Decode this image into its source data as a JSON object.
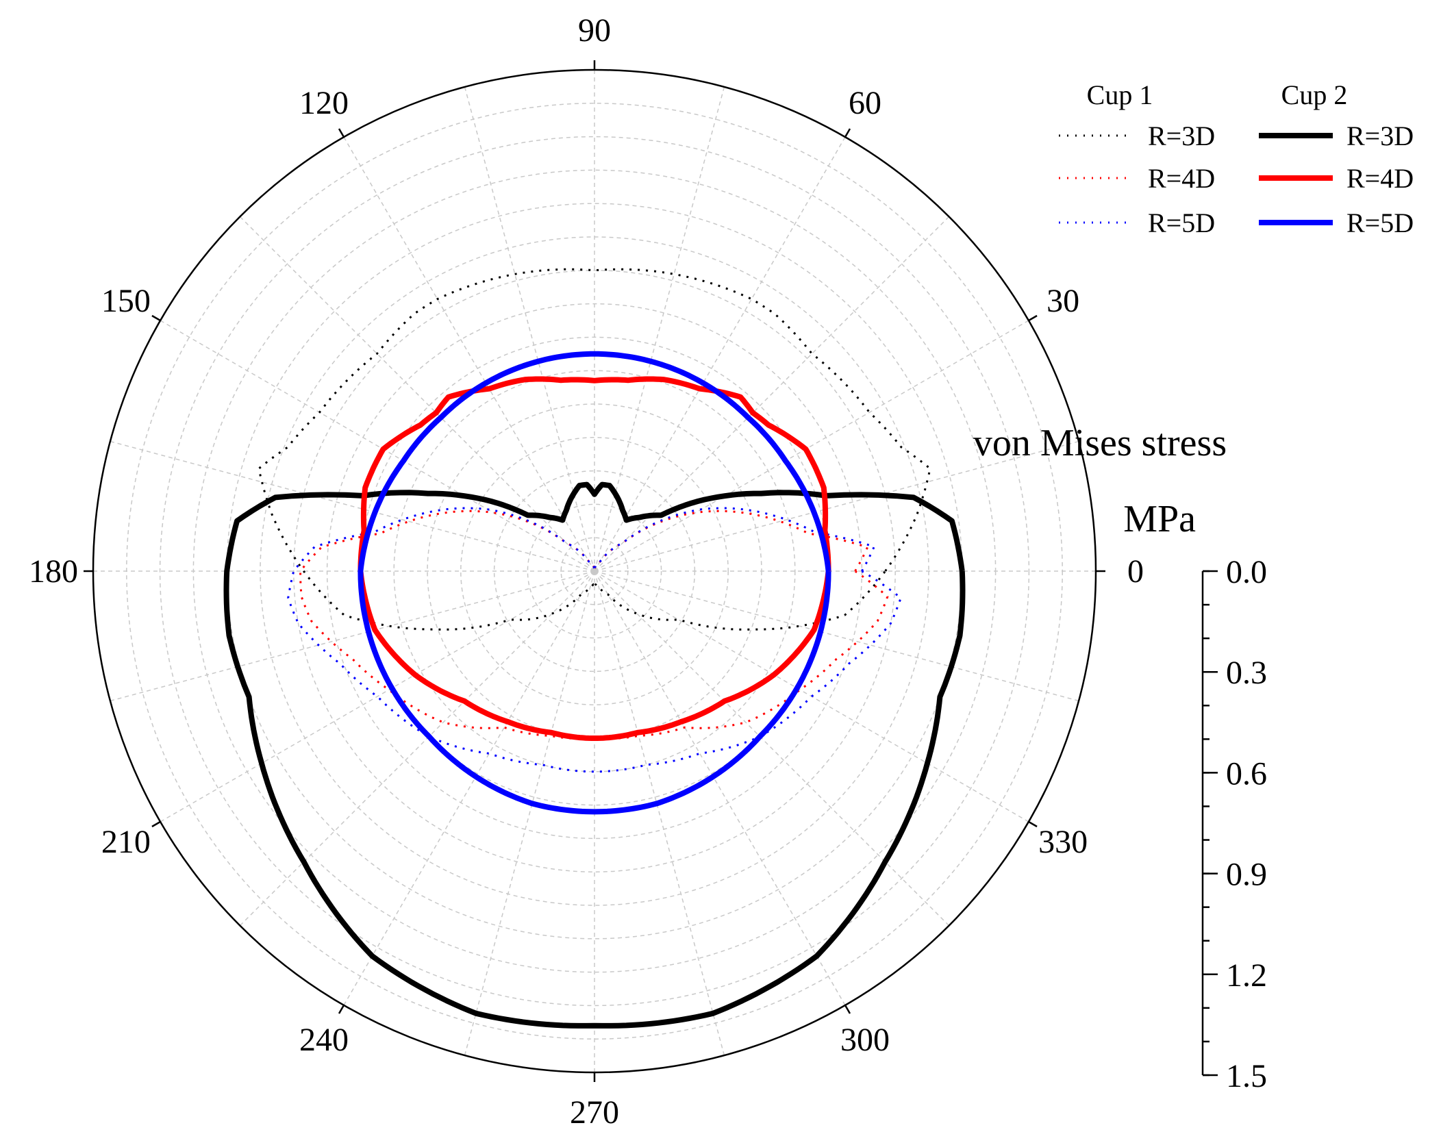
{
  "chart_data": {
    "type": "polar-line",
    "radial_axis": {
      "title": "von Mises stress",
      "unit": "MPa",
      "range": [
        0.0,
        1.5
      ],
      "ticks": [
        "0.0",
        "0.3",
        "0.6",
        "0.9",
        "1.2",
        "1.5"
      ],
      "tick_values": [
        0.0,
        0.3,
        0.6,
        0.9,
        1.2,
        1.5
      ],
      "minor_step": 0.1,
      "grid_rings": 15,
      "grid": true
    },
    "angular_axis": {
      "unit": "deg",
      "ticks": [
        "0",
        "30",
        "60",
        "90",
        "120",
        "150",
        "180",
        "210",
        "240",
        "270",
        "300",
        "330"
      ],
      "spoke_step": 15
    },
    "legend": {
      "placement": "top-right",
      "groups": [
        {
          "title": "Cup 1",
          "style": "dotted",
          "entries": [
            "R=3D",
            "R=4D",
            "R=5D"
          ]
        },
        {
          "title": "Cup 2",
          "style": "solid",
          "entries": [
            "R=3D",
            "R=4D",
            "R=5D"
          ]
        }
      ]
    },
    "series": [
      {
        "name": "Cup 1 R=3D",
        "cup": "Cup 1",
        "style": "dotted",
        "color": "#000000",
        "angles": [
          0,
          10,
          17,
          22,
          30,
          45,
          55,
          60,
          75,
          90,
          105,
          120,
          125,
          135,
          150,
          158,
          163,
          170,
          180,
          190,
          200,
          210,
          225,
          240,
          255,
          265,
          270,
          275,
          285,
          300,
          315,
          330,
          340,
          350
        ],
        "values": [
          0.87,
          0.98,
          1.05,
          0.99,
          0.95,
          0.92,
          0.94,
          0.94,
          0.92,
          0.9,
          0.92,
          0.94,
          0.94,
          0.92,
          0.95,
          0.99,
          1.05,
          0.98,
          0.87,
          0.76,
          0.51,
          0.29,
          0.18,
          0.08,
          0.05,
          0.04,
          0.05,
          0.04,
          0.05,
          0.08,
          0.18,
          0.29,
          0.51,
          0.76
        ]
      },
      {
        "name": "Cup 1 R=4D",
        "cup": "Cup 1",
        "style": "dotted",
        "color": "#ff0000",
        "angles": [
          0,
          5,
          10,
          20,
          30,
          45,
          60,
          75,
          90,
          105,
          120,
          135,
          150,
          160,
          170,
          175,
          180,
          185,
          190,
          200,
          210,
          225,
          240,
          255,
          270,
          285,
          300,
          315,
          330,
          340,
          350,
          355
        ],
        "values": [
          0.78,
          0.82,
          0.65,
          0.5,
          0.35,
          0.12,
          0.03,
          0.02,
          0.0,
          0.02,
          0.03,
          0.12,
          0.35,
          0.5,
          0.65,
          0.82,
          0.88,
          0.88,
          0.86,
          0.77,
          0.71,
          0.64,
          0.54,
          0.51,
          0.5,
          0.51,
          0.54,
          0.64,
          0.71,
          0.77,
          0.86,
          0.88
        ]
      },
      {
        "name": "Cup 1 R=5D",
        "cup": "Cup 1",
        "style": "dotted",
        "color": "#0000ff",
        "angles": [
          0,
          5,
          10,
          20,
          30,
          45,
          60,
          75,
          90,
          105,
          120,
          135,
          150,
          160,
          170,
          175,
          180,
          185,
          190,
          200,
          210,
          225,
          240,
          255,
          270,
          285,
          300,
          315,
          330,
          340,
          350,
          355
        ],
        "values": [
          0.8,
          0.84,
          0.67,
          0.52,
          0.37,
          0.12,
          0.03,
          0.02,
          0.0,
          0.02,
          0.03,
          0.12,
          0.37,
          0.52,
          0.67,
          0.84,
          0.9,
          0.92,
          0.9,
          0.81,
          0.75,
          0.7,
          0.63,
          0.6,
          0.6,
          0.6,
          0.63,
          0.7,
          0.75,
          0.81,
          0.9,
          0.92
        ]
      },
      {
        "name": "Cup 2 R=3D",
        "cup": "Cup 2",
        "style": "solid",
        "color": "#000000",
        "angles": [
          0,
          8,
          13,
          18,
          25,
          30,
          40,
          50,
          58,
          65,
          75,
          80,
          85,
          90,
          95,
          100,
          105,
          115,
          122,
          130,
          140,
          150,
          155,
          162,
          167,
          172,
          180,
          190,
          200,
          210,
          225,
          240,
          255,
          270,
          285,
          300,
          315,
          330,
          340,
          350
        ],
        "values": [
          1.1,
          1.08,
          0.98,
          0.73,
          0.55,
          0.45,
          0.26,
          0.21,
          0.18,
          0.2,
          0.24,
          0.26,
          0.26,
          0.23,
          0.26,
          0.26,
          0.24,
          0.2,
          0.18,
          0.21,
          0.26,
          0.45,
          0.55,
          0.73,
          0.98,
          1.08,
          1.1,
          1.11,
          1.1,
          1.15,
          1.23,
          1.33,
          1.37,
          1.36,
          1.37,
          1.33,
          1.23,
          1.15,
          1.1,
          1.11
        ]
      },
      {
        "name": "Cup 2 R=4D",
        "cup": "Cup 2",
        "style": "solid",
        "color": "#ff0000",
        "angles": [
          0,
          10,
          20,
          30,
          40,
          45,
          50,
          60,
          70,
          80,
          90,
          100,
          110,
          120,
          130,
          135,
          140,
          150,
          160,
          170,
          180,
          195,
          210,
          225,
          240,
          255,
          270,
          285,
          300,
          315,
          330,
          345
        ],
        "values": [
          0.7,
          0.7,
          0.73,
          0.73,
          0.68,
          0.67,
          0.68,
          0.63,
          0.61,
          0.58,
          0.57,
          0.58,
          0.61,
          0.63,
          0.68,
          0.67,
          0.68,
          0.73,
          0.73,
          0.7,
          0.7,
          0.68,
          0.62,
          0.55,
          0.52,
          0.5,
          0.5,
          0.5,
          0.52,
          0.55,
          0.62,
          0.68
        ]
      },
      {
        "name": "Cup 2 R=5D",
        "cup": "Cup 2",
        "style": "solid",
        "color": "#0000ff",
        "angles": [
          0,
          15,
          30,
          45,
          60,
          75,
          90,
          105,
          120,
          135,
          150,
          165,
          180,
          195,
          210,
          225,
          240,
          255,
          270,
          285,
          300,
          315,
          330,
          345
        ],
        "values": [
          0.7,
          0.68,
          0.66,
          0.65,
          0.65,
          0.65,
          0.65,
          0.65,
          0.65,
          0.65,
          0.66,
          0.68,
          0.7,
          0.7,
          0.7,
          0.7,
          0.71,
          0.72,
          0.72,
          0.72,
          0.71,
          0.7,
          0.7,
          0.7
        ]
      }
    ]
  }
}
